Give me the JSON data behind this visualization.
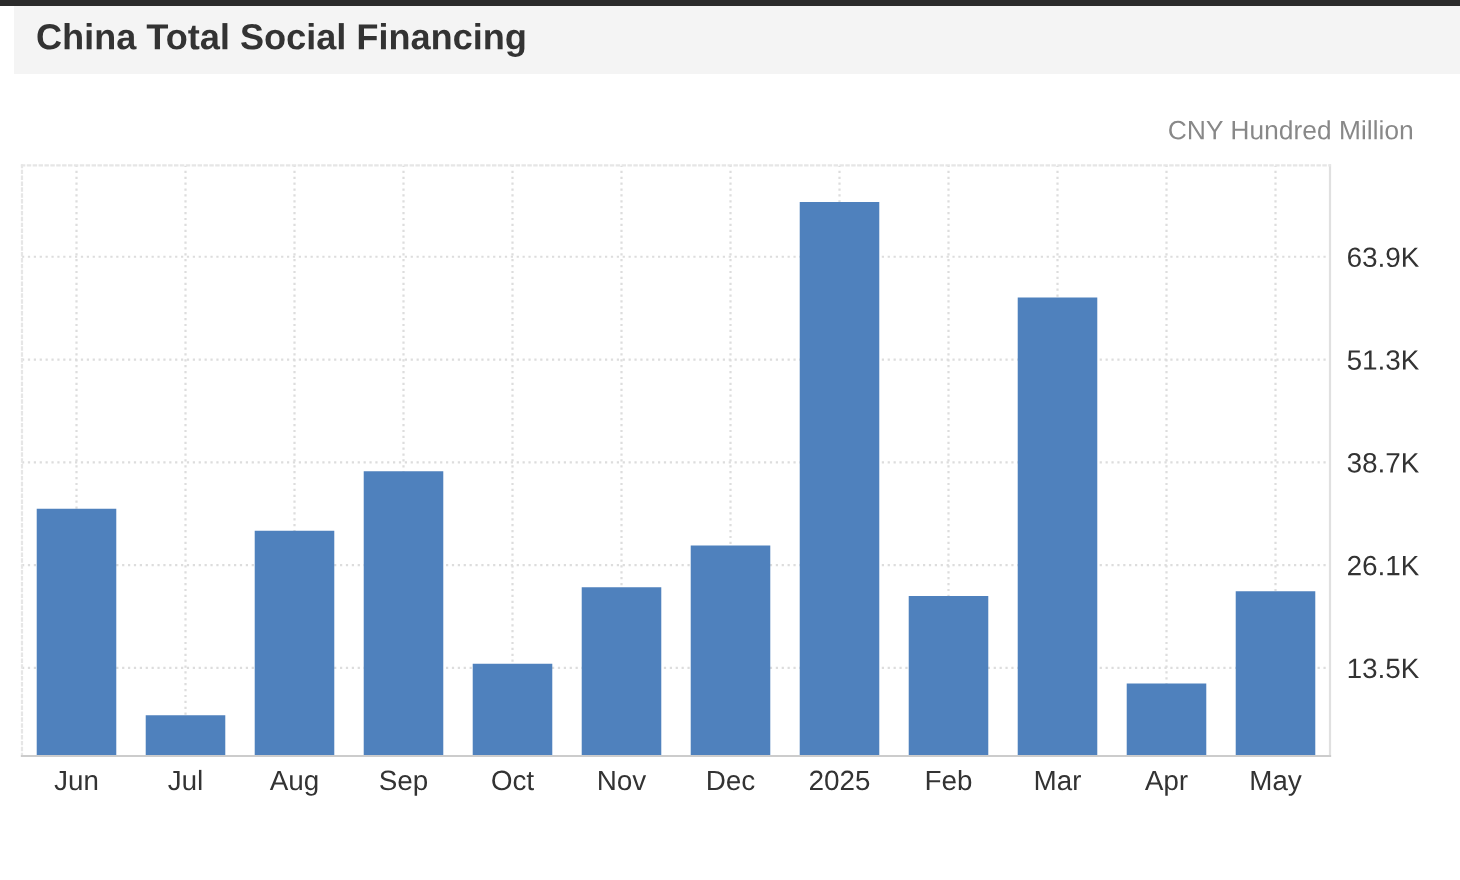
{
  "chart_data": {
    "type": "bar",
    "title": "China Total Social Financing",
    "ylabel": "CNY Hundred Million",
    "categories": [
      "Jun",
      "Jul",
      "Aug",
      "Sep",
      "Oct",
      "Nov",
      "Dec",
      "2025",
      "Feb",
      "Mar",
      "Apr",
      "May"
    ],
    "values": [
      33000,
      7700,
      30300,
      37600,
      14000,
      23400,
      28500,
      70600,
      22300,
      58900,
      11600,
      22900
    ],
    "color": "#4f81bd",
    "ylim": [
      2700,
      75100
    ],
    "yticks": [
      {
        "value": 13500,
        "label": "13.5K"
      },
      {
        "value": 26100,
        "label": "26.1K"
      },
      {
        "value": 38700,
        "label": "38.7K"
      },
      {
        "value": 51300,
        "label": "51.3K"
      },
      {
        "value": 63900,
        "label": "63.9K"
      }
    ],
    "grid": true
  }
}
